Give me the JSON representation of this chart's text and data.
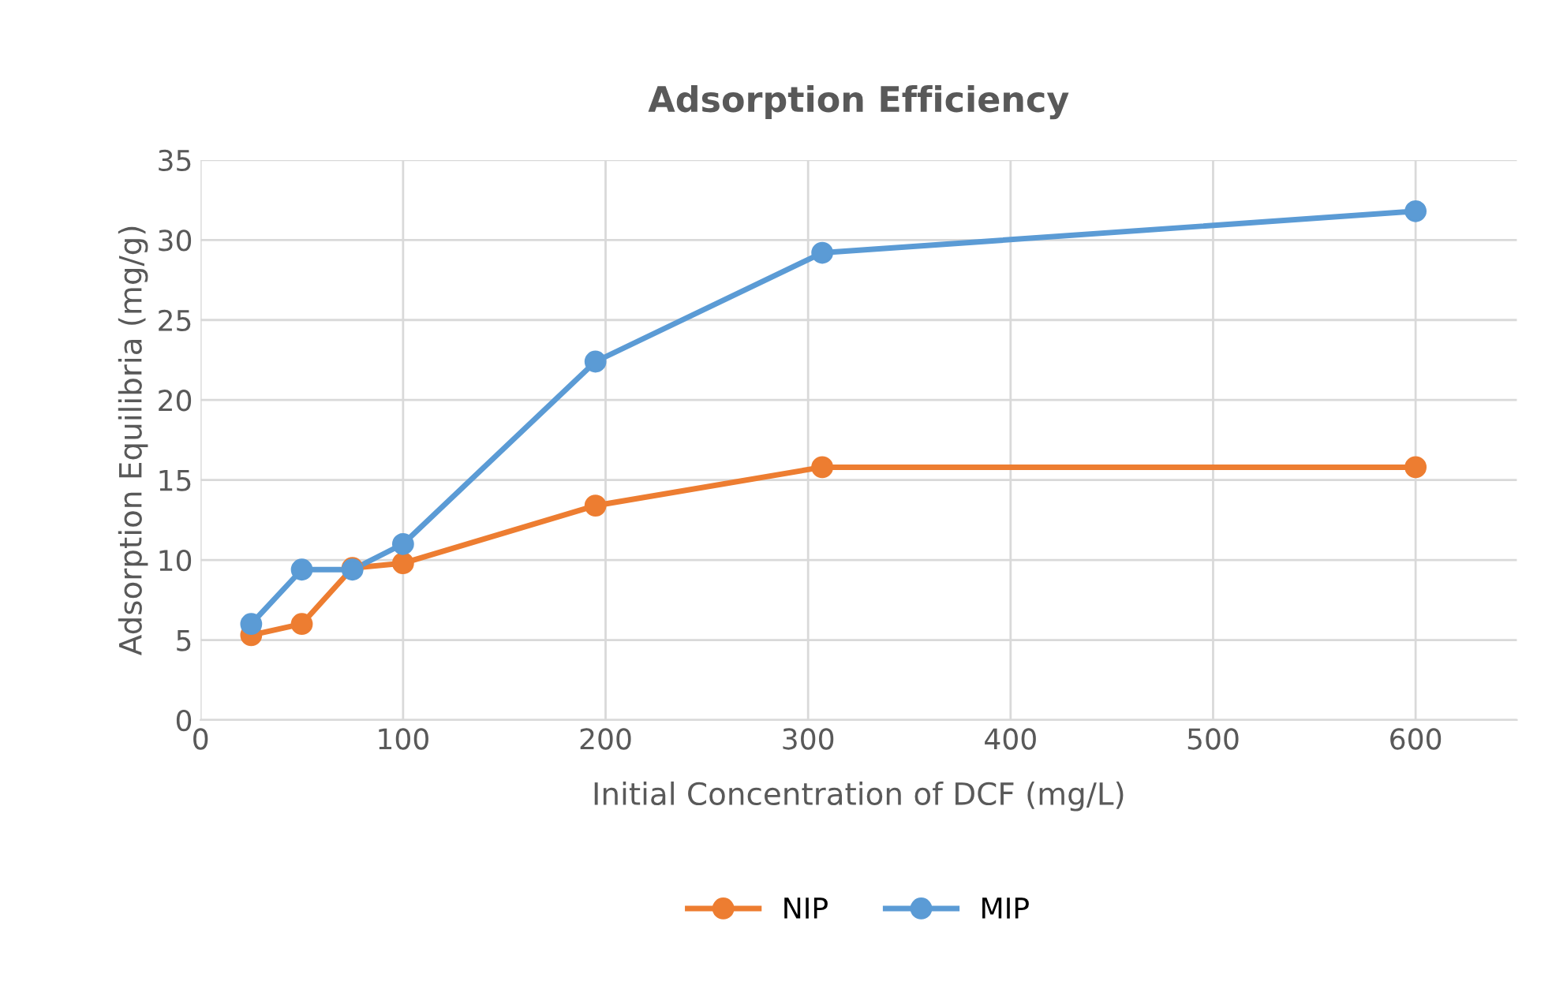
{
  "chart_data": {
    "type": "line",
    "title": "Adsorption Efficiency",
    "xlabel": "Initial Concentration of DCF (mg/L)",
    "ylabel": "Adsorption Equilibria (mg/g)",
    "x": [
      25,
      50,
      75,
      100,
      195,
      307,
      600
    ],
    "series": [
      {
        "name": "NIP",
        "color": "#ed7d31",
        "values": [
          5.3,
          6.0,
          9.5,
          9.8,
          13.4,
          15.8,
          15.8
        ]
      },
      {
        "name": "MIP",
        "color": "#5b9bd5",
        "values": [
          6.0,
          9.4,
          9.4,
          11.0,
          22.4,
          29.2,
          31.8
        ]
      }
    ],
    "xlim": [
      0,
      650
    ],
    "xticks": [
      0,
      100,
      200,
      300,
      400,
      500,
      600
    ],
    "ylim": [
      0,
      35
    ],
    "yticks": [
      0,
      5,
      10,
      15,
      20,
      25,
      30,
      35
    ],
    "grid": true,
    "legend": "bottom",
    "marker": "circle",
    "line_style": "solid"
  }
}
